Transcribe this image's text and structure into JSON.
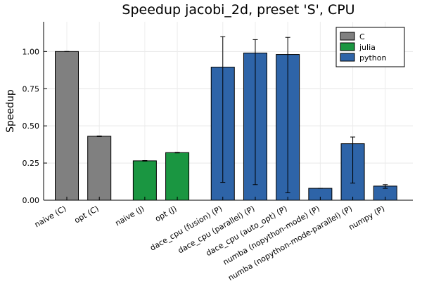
{
  "chart_data": {
    "type": "bar",
    "title": "Speedup jacobi_2d, preset 'S', CPU",
    "xlabel": "",
    "ylabel": "Speedup",
    "ylim": [
      0,
      1.2
    ],
    "yticks": [
      "0.00",
      "0.25",
      "0.50",
      "0.75",
      "1.00"
    ],
    "ytick_values": [
      0,
      0.25,
      0.5,
      0.75,
      1.0
    ],
    "grid": true,
    "legend_position": "top-right",
    "series": [
      {
        "name": "C",
        "color": "#808080"
      },
      {
        "name": "julia",
        "color": "#1a9641"
      },
      {
        "name": "python",
        "color": "#2e64a8"
      }
    ],
    "bars": [
      {
        "label": "naive (C)",
        "series": "C",
        "value": 1.0,
        "err_low": 1.0,
        "err_high": 1.0
      },
      {
        "label": "opt (C)",
        "series": "C",
        "value": 0.43,
        "err_low": 0.428,
        "err_high": 0.432
      },
      {
        "label": "naive (J)",
        "series": "julia",
        "value": 0.265,
        "err_low": 0.263,
        "err_high": 0.267
      },
      {
        "label": "opt (J)",
        "series": "julia",
        "value": 0.32,
        "err_low": 0.318,
        "err_high": 0.322
      },
      {
        "label": "dace_cpu (fusion) (P)",
        "series": "python",
        "value": 0.895,
        "err_low": 0.12,
        "err_high": 1.1
      },
      {
        "label": "dace_cpu (parallel) (P)",
        "series": "python",
        "value": 0.99,
        "err_low": 0.105,
        "err_high": 1.08
      },
      {
        "label": "dace_cpu (auto_opt) (P)",
        "series": "python",
        "value": 0.98,
        "err_low": 0.05,
        "err_high": 1.095
      },
      {
        "label": "numba (nopython-mode) (P)",
        "series": "python",
        "value": 0.08,
        "err_low": 0.08,
        "err_high": 0.08
      },
      {
        "label": "numba (nopython-mode-parallel) (P)",
        "series": "python",
        "value": 0.38,
        "err_low": 0.115,
        "err_high": 0.425
      },
      {
        "label": "numpy (P)",
        "series": "python",
        "value": 0.095,
        "err_low": 0.08,
        "err_high": 0.105
      }
    ]
  }
}
